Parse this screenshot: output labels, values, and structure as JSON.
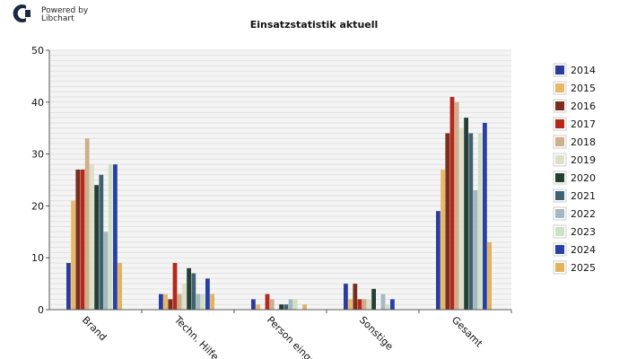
{
  "logo": {
    "icon": "libchart-logo-icon",
    "line1": "Powered by",
    "line2": "Libchart"
  },
  "chart_data": {
    "type": "bar",
    "title": "Einsatzstatistik aktuell",
    "xlabel": "",
    "ylabel": "",
    "ylim": [
      0,
      50
    ],
    "yticks": [
      "0",
      "10",
      "20",
      "30",
      "40",
      "50"
    ],
    "grid": true,
    "legend_position": "right",
    "categories": [
      "Brand",
      "Techn. Hilfe",
      "Person eingekl.",
      "Sonstige",
      "Gesamt"
    ],
    "series": [
      {
        "name": "2014",
        "color": "#2b3d9c",
        "values": [
          9,
          3,
          2,
          5,
          19
        ]
      },
      {
        "name": "2015",
        "color": "#e8b866",
        "values": [
          21,
          3,
          1,
          2,
          27
        ]
      },
      {
        "name": "2016",
        "color": "#7a2f1e",
        "values": [
          27,
          2,
          0,
          5,
          34
        ]
      },
      {
        "name": "2017",
        "color": "#b5281c",
        "values": [
          27,
          9,
          3,
          2,
          41
        ]
      },
      {
        "name": "2018",
        "color": "#cfae8c",
        "values": [
          33,
          3,
          2,
          2,
          40
        ]
      },
      {
        "name": "2019",
        "color": "#dedfc8",
        "values": [
          28,
          5,
          0,
          2,
          35
        ]
      },
      {
        "name": "2020",
        "color": "#243f33",
        "values": [
          24,
          8,
          1,
          4,
          37
        ]
      },
      {
        "name": "2021",
        "color": "#40616f",
        "values": [
          26,
          7,
          1,
          0,
          34
        ]
      },
      {
        "name": "2022",
        "color": "#a6b8c0",
        "values": [
          15,
          3,
          2,
          3,
          23
        ]
      },
      {
        "name": "2023",
        "color": "#cfe0c4",
        "values": [
          28,
          3,
          2,
          1,
          34
        ]
      },
      {
        "name": "2024",
        "color": "#2a3fa6",
        "values": [
          28,
          6,
          0,
          2,
          36
        ]
      },
      {
        "name": "2025",
        "color": "#e3b25e",
        "values": [
          9,
          3,
          1,
          0,
          13
        ]
      }
    ]
  }
}
